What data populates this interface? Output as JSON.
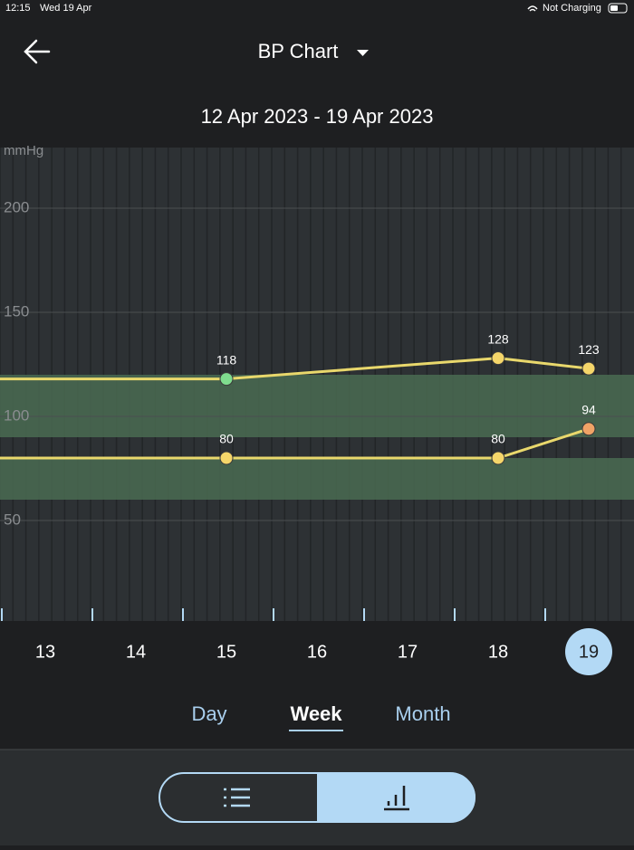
{
  "status_bar": {
    "time": "12:15",
    "date": "Wed 19 Apr",
    "battery": "Not Charging"
  },
  "header": {
    "title": "BP Chart",
    "date_range": "12 Apr 2023 - 19 Apr 2023"
  },
  "chart_data": {
    "type": "line",
    "y_label": "mmHg",
    "x": [
      15,
      18,
      19
    ],
    "xlim": [
      12.5,
      19.5
    ],
    "xticks": [
      13,
      14,
      15,
      16,
      17,
      18,
      19
    ],
    "selected_x": 19,
    "ylim": [
      0,
      230
    ],
    "yticks": [
      50,
      100,
      150,
      200
    ],
    "grid": true,
    "normal_ranges": [
      {
        "from": 90,
        "to": 120,
        "color": "#4a6b52"
      },
      {
        "from": 60,
        "to": 80,
        "color": "#4a6b52"
      }
    ],
    "series": [
      {
        "color": "#e9d86c",
        "point_colors": [
          "#7fdc8e",
          "#f5d66a",
          "#f5d66a"
        ],
        "values": [
          118,
          128,
          123
        ]
      },
      {
        "color": "#e9d86c",
        "point_colors": [
          "#f5d66a",
          "#f5d66a",
          "#f0a366"
        ],
        "values": [
          80,
          80,
          94
        ]
      }
    ]
  },
  "tabs": {
    "items": [
      "Day",
      "Week",
      "Month"
    ],
    "selected": 1
  }
}
